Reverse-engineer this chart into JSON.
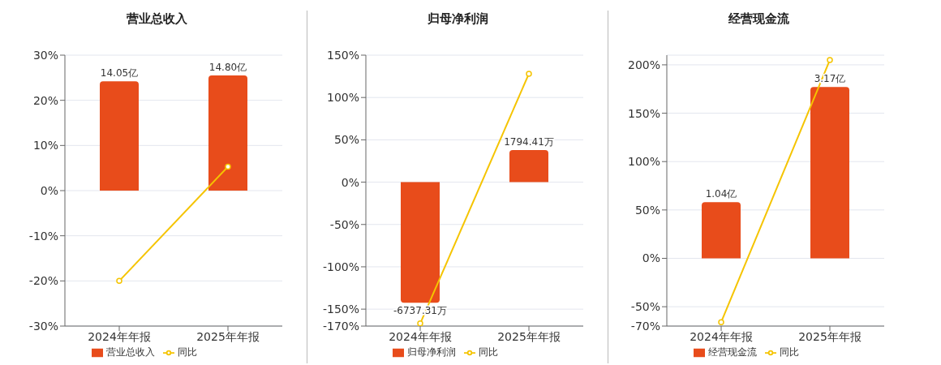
{
  "chart_data": [
    {
      "type": "bar",
      "title": "营业总收入",
      "categories": [
        "2024年年报",
        "2025年年报"
      ],
      "series": [
        {
          "name": "营业总收入",
          "axis": "y2",
          "color": "#e84c1b",
          "values": [
            14.05,
            14.8
          ],
          "value_labels": [
            "14.05亿",
            "14.80亿"
          ]
        },
        {
          "name": "同比",
          "type": "line",
          "color": "#f5c400",
          "values": [
            -20,
            5.3
          ]
        }
      ],
      "ylim": [
        -30,
        30
      ],
      "yticks": [
        {
          "value": -30,
          "label": "-30%"
        },
        {
          "value": -20,
          "label": "-20%"
        },
        {
          "value": -10,
          "label": "-10%"
        },
        {
          "value": 0,
          "label": "0%"
        },
        {
          "value": 10,
          "label": "10%"
        },
        {
          "value": 20,
          "label": "20%"
        },
        {
          "value": 30,
          "label": "30%"
        }
      ],
      "y2lim": [
        -17.4,
        17.4
      ],
      "grid": "y",
      "legend": "bottom",
      "marker": "circle"
    },
    {
      "type": "bar",
      "title": "归母净利润",
      "categories": [
        "2024年年报",
        "2025年年报"
      ],
      "series": [
        {
          "name": "归母净利润",
          "axis": "y2",
          "color": "#e84c1b",
          "values": [
            -6737.31,
            1794.41
          ],
          "value_labels": [
            "-6737.31万",
            "1794.41万"
          ]
        },
        {
          "name": "同比",
          "type": "line",
          "color": "#f5c400",
          "values": [
            -167,
            128
          ]
        }
      ],
      "ylim": [
        -170,
        150
      ],
      "yticks": [
        {
          "value": -170,
          "label": "-170%"
        },
        {
          "value": -150,
          "label": "-150%"
        },
        {
          "value": -100,
          "label": "-100%"
        },
        {
          "value": -50,
          "label": "-50%"
        },
        {
          "value": 0,
          "label": "0%"
        },
        {
          "value": 50,
          "label": "50%"
        },
        {
          "value": 100,
          "label": "100%"
        },
        {
          "value": 150,
          "label": "150%"
        }
      ],
      "y2lim": [
        -8040,
        7095
      ],
      "grid": "y",
      "legend": "bottom",
      "marker": "circle"
    },
    {
      "type": "bar",
      "title": "经营现金流",
      "categories": [
        "2024年年报",
        "2025年年报"
      ],
      "series": [
        {
          "name": "经营现金流",
          "axis": "y2",
          "color": "#e84c1b",
          "values": [
            1.04,
            3.17
          ],
          "value_labels": [
            "1.04亿",
            "3.17亿"
          ]
        },
        {
          "name": "同比",
          "type": "line",
          "color": "#f5c400",
          "values": [
            -66,
            205
          ]
        }
      ],
      "ylim": [
        -70,
        210
      ],
      "yticks": [
        {
          "value": -70,
          "label": "-70%"
        },
        {
          "value": -50,
          "label": "-50%"
        },
        {
          "value": 0,
          "label": "0%"
        },
        {
          "value": 50,
          "label": "50%"
        },
        {
          "value": 100,
          "label": "100%"
        },
        {
          "value": 150,
          "label": "150%"
        },
        {
          "value": 200,
          "label": "200%"
        }
      ],
      "y2lim": [
        -1.253,
        3.76
      ],
      "grid": "y",
      "legend": "bottom",
      "marker": "circle"
    }
  ]
}
